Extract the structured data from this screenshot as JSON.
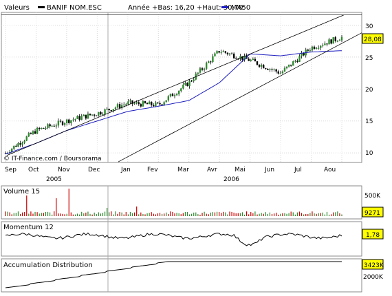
{
  "header": {
    "valeurs_label": "Valeurs",
    "symbol_label": "BANIF NOM.ESC",
    "range_label": "Année +Bas: 16,20 +Haut: 30,70",
    "ma_label": "MA50"
  },
  "colors": {
    "price": "#000000",
    "up_candle": "#2e8b2e",
    "down_candle": "#000000",
    "ma50": "#1c1cbf",
    "channel": "#000000",
    "badge_bg": "#ffff00",
    "volume_up": "#2e8b2e",
    "volume_down": "#cc0000"
  },
  "main_chart": {
    "y_ticks": [
      "30",
      "25",
      "20",
      "15",
      "10"
    ],
    "x_ticks": [
      "Sep",
      "Oct",
      "Nov",
      "Dec",
      "Jan",
      "Fev",
      "Mar",
      "Avr",
      "Mai",
      "Jun",
      "Jul",
      "Aou"
    ],
    "year_labels": [
      "2005",
      "2006"
    ],
    "last_value": "28,08",
    "credit": "© IT-Finance.com / Boursorama"
  },
  "volume_panel": {
    "title": "Volume 15",
    "scale_label": "500K",
    "last_value": "9271"
  },
  "momentum_panel": {
    "title": "Momentum 12",
    "last_value": "1,78"
  },
  "ad_panel": {
    "title": "Accumulation Distribution",
    "last_value": "3423K",
    "scale_label": "2000K"
  },
  "chart_data": {
    "type": "line",
    "title": "BANIF NOM.ESC",
    "ylim": [
      8.5,
      32
    ],
    "x": [
      "Sep",
      "Oct",
      "Nov",
      "Dec",
      "Jan",
      "Fev",
      "Mar",
      "Avr",
      "Mai",
      "Jun",
      "Jul",
      "Aou"
    ],
    "series": [
      {
        "name": "BANIF NOM.ESC",
        "values": [
          10.0,
          13.5,
          15.0,
          16.2,
          17.8,
          17.5,
          21.0,
          26.0,
          24.5,
          22.5,
          26.5,
          28.1
        ]
      },
      {
        "name": "MA50",
        "values": [
          9.8,
          11.5,
          13.5,
          15.0,
          16.5,
          17.3,
          18.2,
          21.0,
          25.5,
          25.2,
          25.8,
          26.0
        ]
      }
    ],
    "grid": true,
    "legend": "top-left"
  }
}
